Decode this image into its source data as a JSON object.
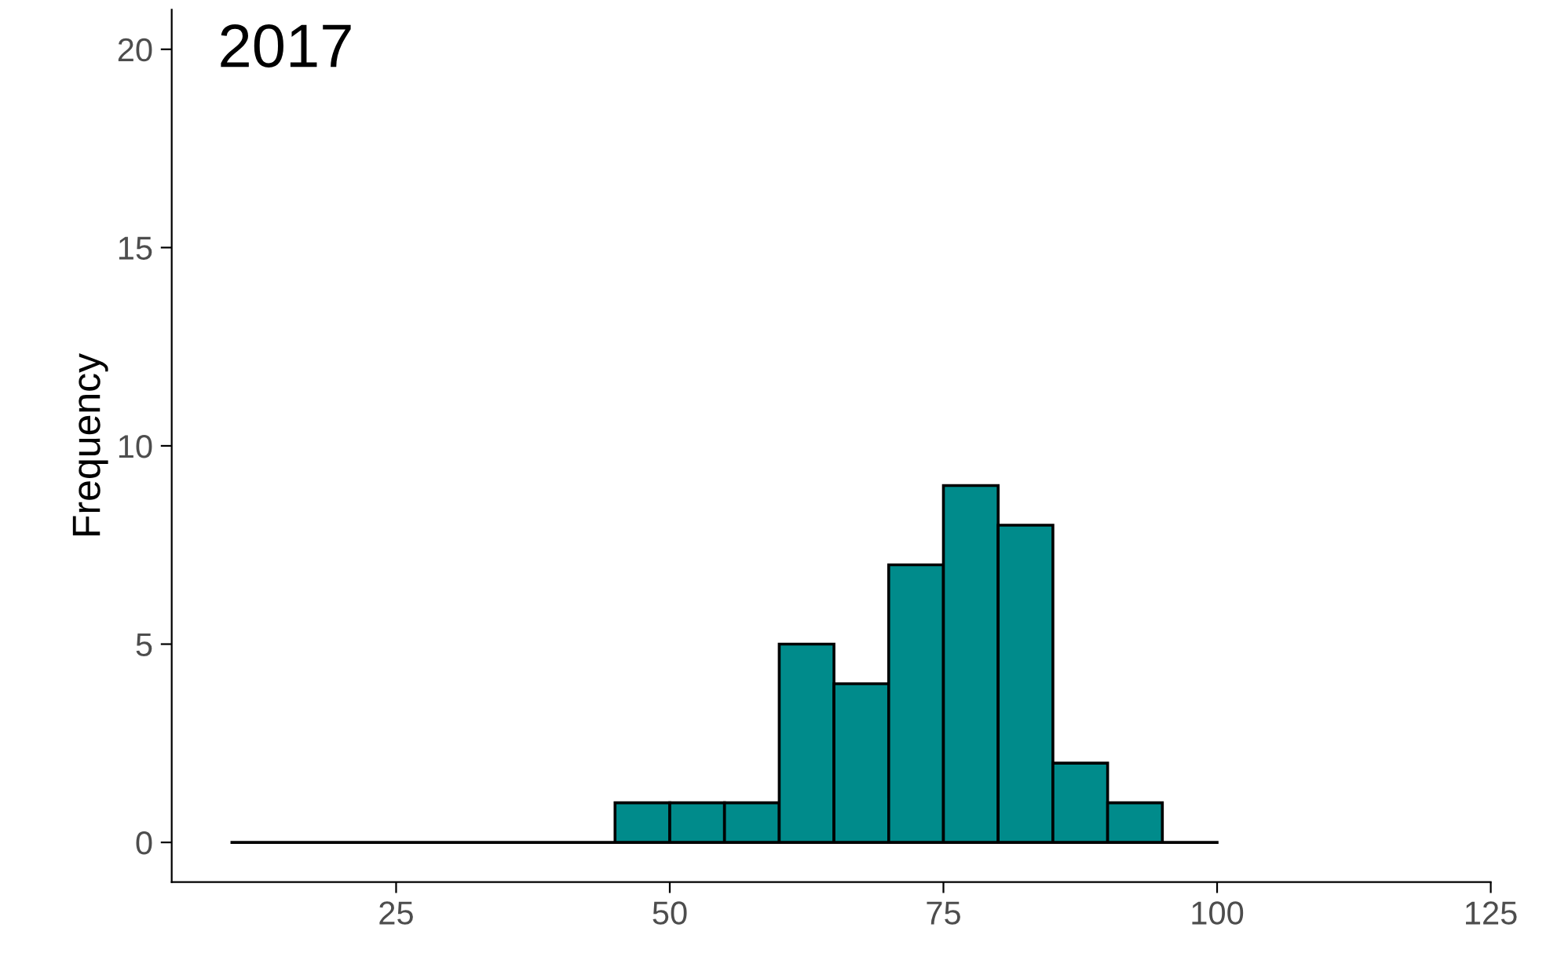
{
  "chart_data": {
    "type": "histogram",
    "title": "2017",
    "ylabel": "Frequency",
    "bins": [
      10,
      15,
      20,
      25,
      30,
      35,
      40,
      45,
      50,
      55,
      60,
      65,
      70,
      75,
      80,
      85,
      90,
      95,
      100
    ],
    "values": [
      0,
      0,
      0,
      0,
      0,
      0,
      0,
      1,
      1,
      1,
      5,
      4,
      7,
      9,
      8,
      2,
      1,
      0
    ],
    "color": "#008b8b",
    "xlim": [
      4.5,
      125
    ],
    "xticks": [
      25,
      50,
      75,
      100,
      125
    ],
    "ylim": [
      -1,
      21
    ],
    "yticks": [
      0,
      5,
      10,
      15,
      20
    ]
  }
}
